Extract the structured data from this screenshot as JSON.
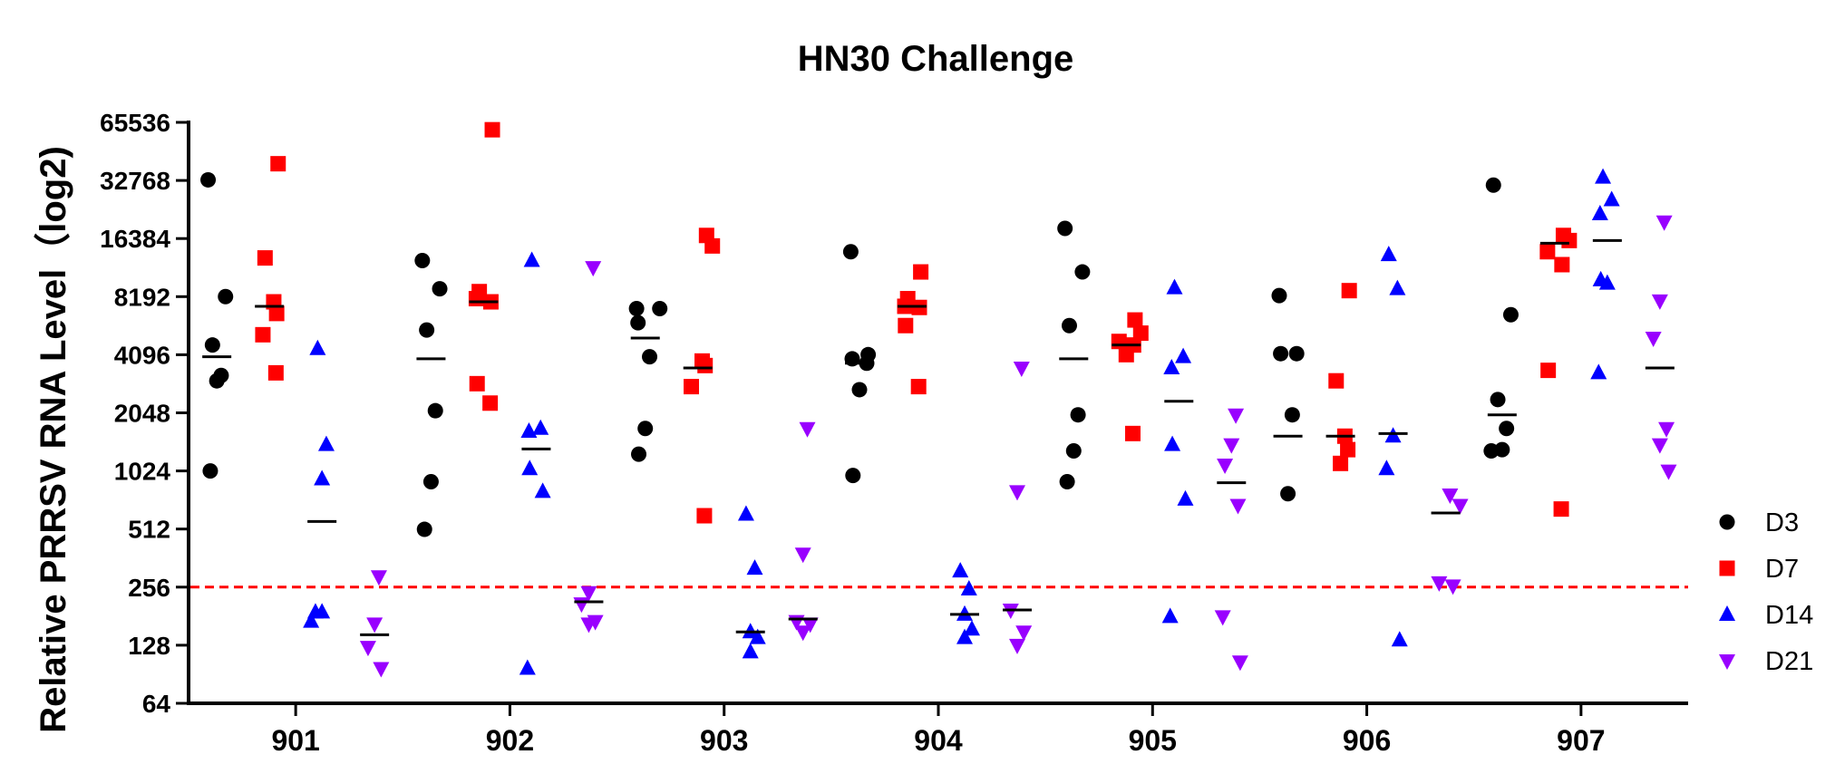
{
  "chart_data": {
    "type": "scatter",
    "title": "HN30 Challenge",
    "ylabel": "Relative PRRSV RNA Level（log2)",
    "xlabel": "",
    "y_scale": "log2",
    "ylim": [
      64,
      65536
    ],
    "y_ticks": [
      "64",
      "128",
      "256",
      "512",
      "1024",
      "2048",
      "4096",
      "8192",
      "16384",
      "32768",
      "65536"
    ],
    "categories": [
      "901",
      "902",
      "903",
      "904",
      "905",
      "906",
      "907"
    ],
    "threshold": {
      "value": 256,
      "color": "#ff0000",
      "style": "dashed"
    },
    "legend_position": "right",
    "grid": false,
    "series": [
      {
        "name": "D3",
        "color": "#000000",
        "marker": "circle",
        "values": [
          [
            33000,
            8200,
            4600,
            3200,
            3000,
            1024
          ],
          [
            12600,
            9000,
            5500,
            2100,
            900,
            510
          ],
          [
            7100,
            7100,
            6000,
            4000,
            1700,
            1250
          ],
          [
            14000,
            4100,
            3900,
            3700,
            2700,
            970
          ],
          [
            18500,
            11000,
            5800,
            2000,
            1300,
            900
          ],
          [
            8300,
            4150,
            4150,
            2000,
            780
          ],
          [
            31000,
            6600,
            2400,
            1700,
            1320,
            1300
          ]
        ],
        "means": [
          4000,
          3900,
          5000,
          3700,
          3900,
          1550,
          2000
        ]
      },
      {
        "name": "D7",
        "color": "#ff0000",
        "marker": "square",
        "values": [
          [
            40000,
            13000,
            7700,
            6700,
            5200,
            3300
          ],
          [
            60000,
            8700,
            8000,
            7700,
            2900,
            2300
          ],
          [
            15000,
            17000,
            3800,
            3600,
            2800,
            600
          ],
          [
            11000,
            8000,
            7300,
            7200,
            5800,
            2800
          ],
          [
            6200,
            5300,
            4800,
            4600,
            4100,
            1600
          ],
          [
            8800,
            3000,
            1550,
            1320,
            1120
          ],
          [
            17000,
            16000,
            14000,
            12000,
            3400,
            650
          ]
        ],
        "means": [
          7300,
          7700,
          3500,
          7300,
          4600,
          1550,
          15500
        ]
      },
      {
        "name": "D14",
        "color": "#0000ff",
        "marker": "triangle-up",
        "values": [
          [
            4400,
            1400,
            930,
            190,
            190,
            170
          ],
          [
            12600,
            1700,
            1640,
            1050,
            800,
            97
          ],
          [
            610,
            320,
            150,
            140,
            118
          ],
          [
            310,
            250,
            185,
            155,
            140
          ],
          [
            9100,
            4000,
            3500,
            1400,
            730,
            180
          ],
          [
            13500,
            9000,
            1550,
            1050,
            136
          ],
          [
            34000,
            26000,
            22000,
            10000,
            9600,
            3300
          ]
        ],
        "means": [
          560,
          1330,
          150,
          185,
          2350,
          1600,
          16000
        ]
      },
      {
        "name": "D21",
        "color": "#9900ff",
        "marker": "triangle-down",
        "values": [
          [
            290,
            165,
            125,
            97
          ],
          [
            11600,
            240,
            210,
            170,
            165
          ],
          [
            1700,
            380,
            170,
            165,
            150
          ],
          [
            3500,
            800,
            195,
            150,
            128
          ],
          [
            2000,
            1400,
            1100,
            680,
            180,
            105
          ],
          [
            770,
            680,
            270,
            260
          ],
          [
            20000,
            7800,
            5000,
            1700,
            1400,
            1024
          ]
        ],
        "means": [
          145,
          215,
          175,
          195,
          890,
          620,
          3500
        ]
      }
    ]
  }
}
